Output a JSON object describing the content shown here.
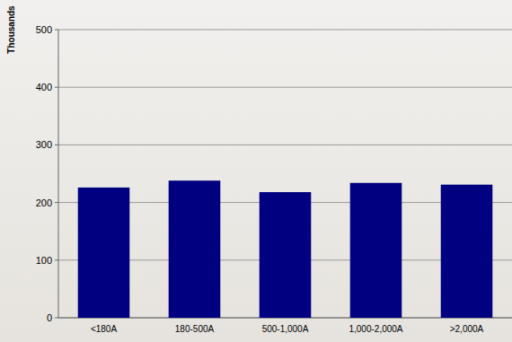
{
  "chart_data": {
    "type": "bar",
    "y_label": "Thousands",
    "categories": [
      "<180A",
      "180-500A",
      "500-1,000A",
      "1,000-2,000A",
      ">2,000A"
    ],
    "values": [
      226,
      238,
      218,
      234,
      231
    ],
    "color": "#000080",
    "ylim": [
      0,
      500
    ],
    "yticks": [
      0,
      100,
      200,
      300,
      400,
      500
    ],
    "grid": true
  }
}
